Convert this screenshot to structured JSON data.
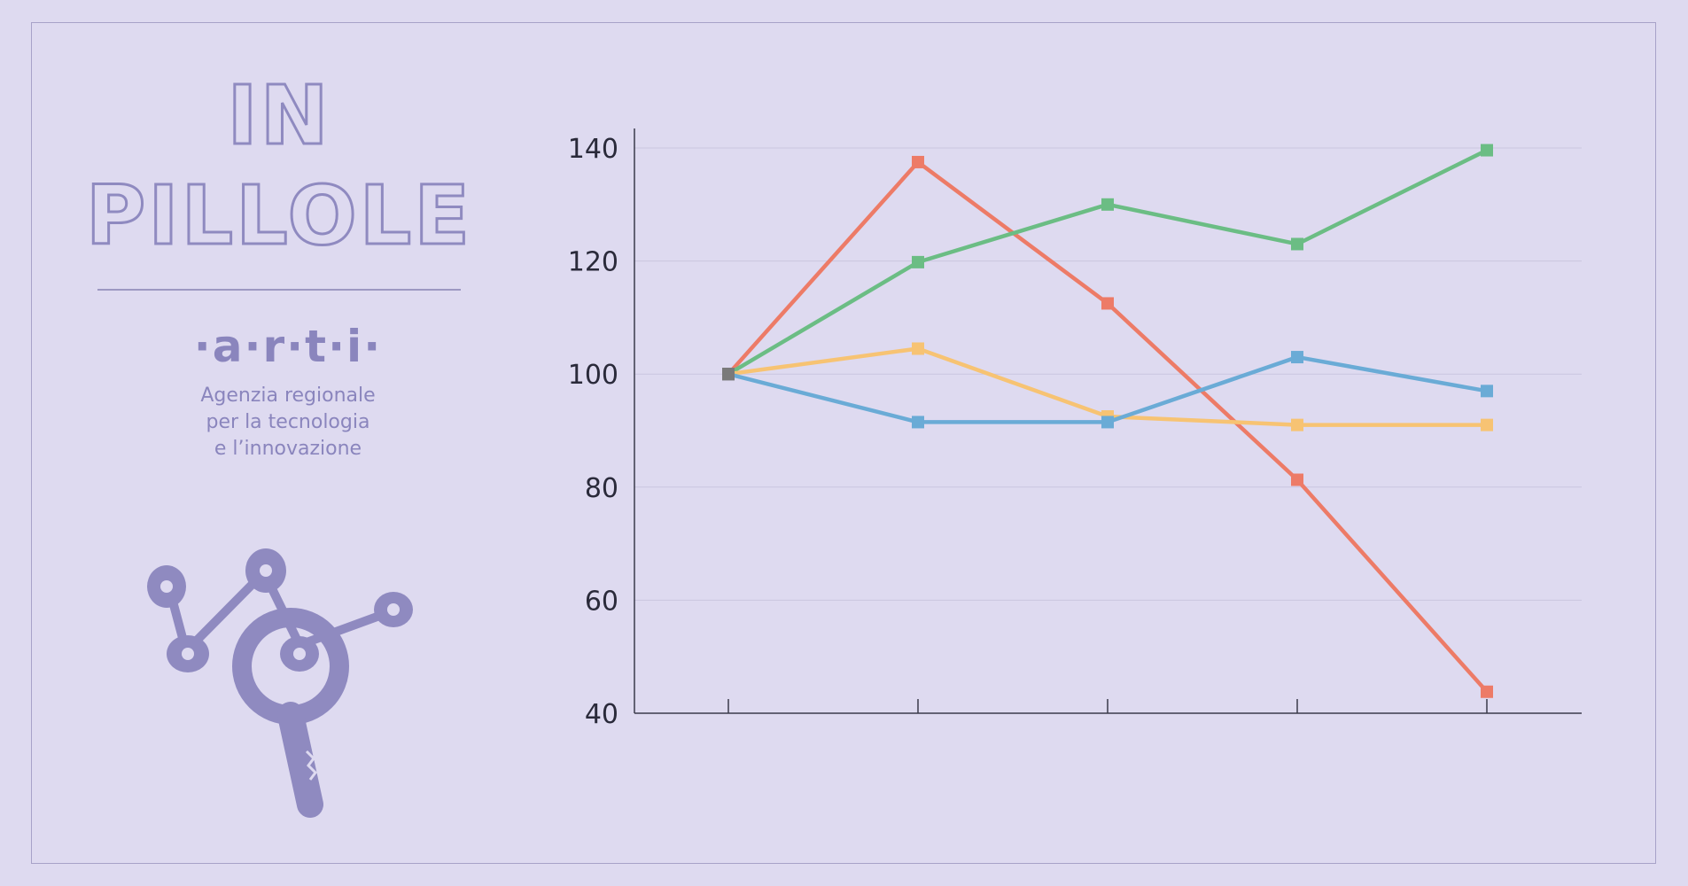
{
  "header": {
    "title_line1": "IN",
    "title_line2": "PILLOLE"
  },
  "brand": {
    "name": "·a·r·t·i·",
    "tagline": [
      "Agenzia regionale",
      "per la tecnologia",
      "e l’innovazione"
    ],
    "logo_icon": "molecule-magnifier-icon"
  },
  "colors": {
    "background": "#dedaf0",
    "accent": "#8f8ac0"
  },
  "chart_data": {
    "type": "line",
    "x": [
      1,
      2,
      3,
      4,
      5
    ],
    "ylim": [
      40,
      140
    ],
    "yticks": [
      40,
      60,
      80,
      100,
      120,
      140
    ],
    "grid": true,
    "series": [
      {
        "color": "#ed7b67",
        "values": [
          100,
          137.5,
          112.5,
          81.3,
          43.8
        ]
      },
      {
        "color": "#6bbd84",
        "values": [
          100,
          119.8,
          130,
          123,
          139.6
        ]
      },
      {
        "color": "#f7c373",
        "values": [
          100,
          104.5,
          92.5,
          91,
          91
        ]
      },
      {
        "color": "#6aabd6",
        "values": [
          100,
          91.5,
          91.5,
          103,
          97
        ]
      }
    ]
  }
}
